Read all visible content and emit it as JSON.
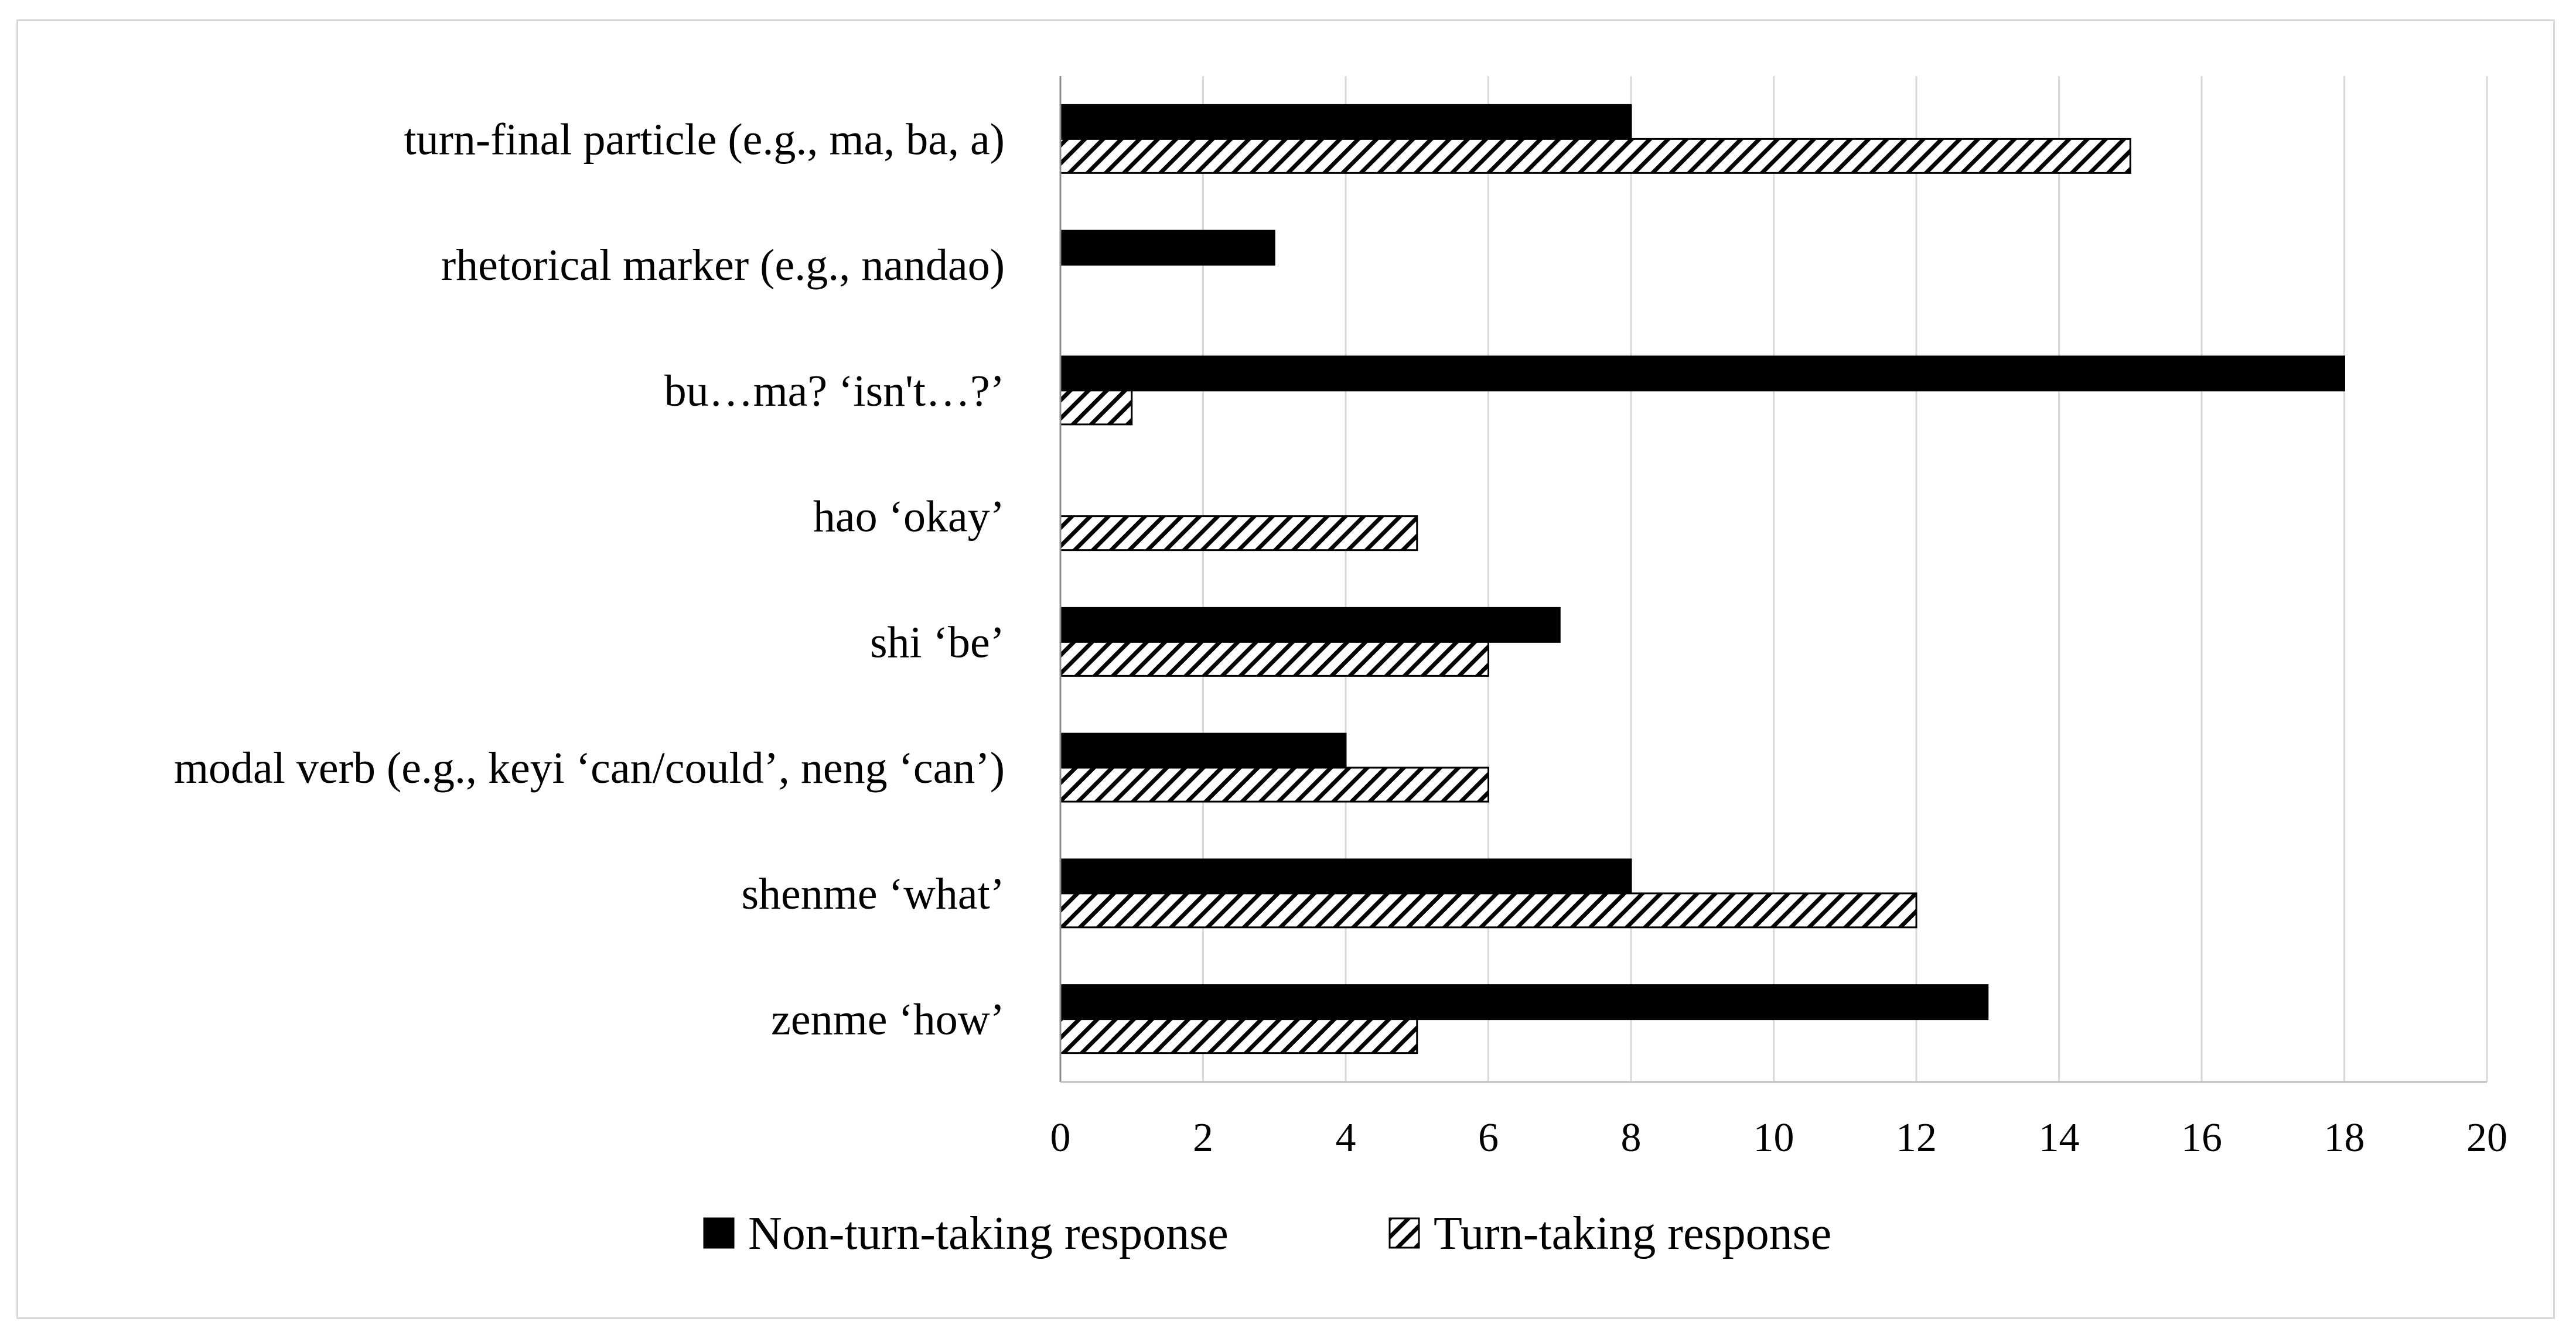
{
  "chart_data": {
    "type": "bar",
    "orientation": "horizontal",
    "title": "",
    "xlabel": "",
    "ylabel": "",
    "xlim": [
      0,
      20
    ],
    "x_ticks": [
      0,
      2,
      4,
      6,
      8,
      10,
      12,
      14,
      16,
      18,
      20
    ],
    "grid": "vertical",
    "legend_position": "bottom",
    "categories": [
      "turn-final particle (e.g., ma, ba, a)",
      "rhetorical marker (e.g., nandao)",
      "bu…ma? ‘isn't…?’",
      "hao ‘okay’",
      "shi ‘be’",
      "modal verb (e.g., keyi ‘can/could’, neng ‘can’)",
      "shenme ‘what’",
      "zenme ‘how’"
    ],
    "series": [
      {
        "name": "Non-turn-taking response",
        "fill": "solid",
        "color": "#000000",
        "values": [
          8,
          3,
          18,
          0,
          7,
          4,
          8,
          13
        ]
      },
      {
        "name": "Turn-taking response",
        "fill": "diagonal-hatch",
        "color": "#000000",
        "values": [
          15,
          0,
          1,
          5,
          6,
          6,
          12,
          5
        ]
      }
    ]
  }
}
